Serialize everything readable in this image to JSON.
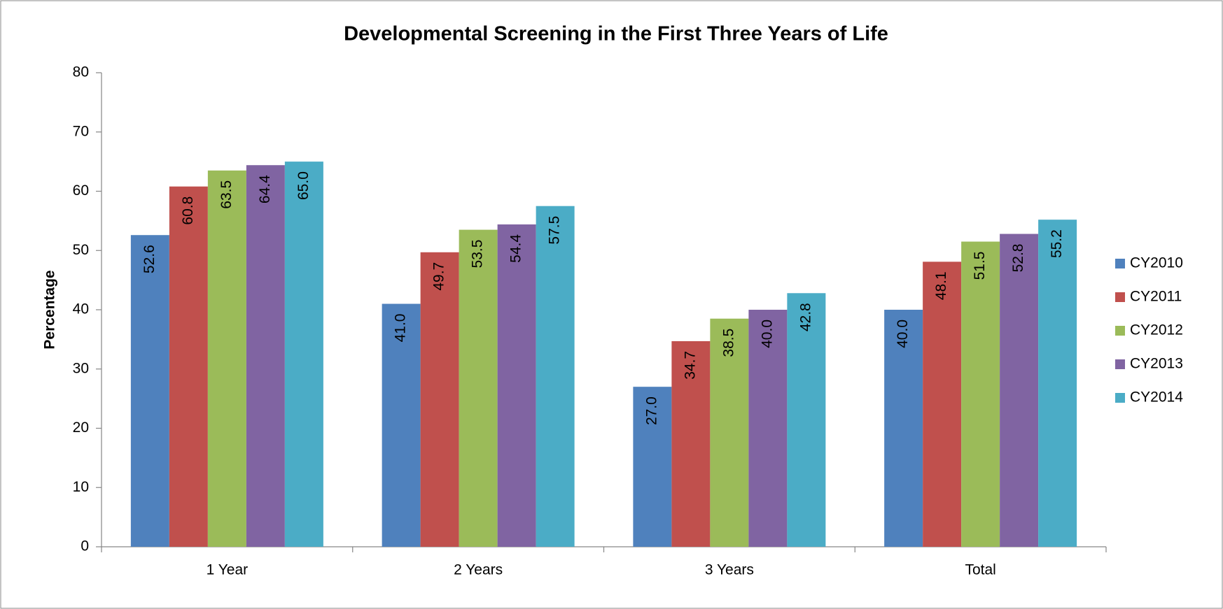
{
  "chart_data": {
    "type": "bar",
    "title": "Developmental Screening in the First Three Years of Life",
    "y_label": "Percentage",
    "categories": [
      "1 Year",
      "2 Years",
      "3 Years",
      "Total"
    ],
    "series": [
      {
        "name": "CY2010",
        "color": "#4f81bd",
        "values": [
          52.6,
          41.0,
          27.0,
          40.0
        ],
        "value_labels": [
          "52.6",
          "41.0",
          "27.0",
          "40.0"
        ]
      },
      {
        "name": "CY2011",
        "color": "#c0504d",
        "values": [
          60.8,
          49.7,
          34.7,
          48.1
        ],
        "value_labels": [
          "60.8",
          "49.7",
          "34.7",
          "48.1"
        ]
      },
      {
        "name": "CY2012",
        "color": "#9bbb59",
        "values": [
          63.5,
          53.5,
          38.5,
          51.5
        ],
        "value_labels": [
          "63.5",
          "53.5",
          "38.5",
          "51.5"
        ]
      },
      {
        "name": "CY2013",
        "color": "#8064a2",
        "values": [
          64.4,
          54.4,
          40.0,
          52.8
        ],
        "value_labels": [
          "64.4",
          "54.4",
          "40.0",
          "52.8"
        ]
      },
      {
        "name": "CY2014",
        "color": "#4bacc6",
        "values": [
          65.0,
          57.5,
          42.8,
          55.2
        ],
        "value_labels": [
          "65.0",
          "57.5",
          "42.8",
          "55.2"
        ]
      }
    ],
    "ylim": [
      0,
      80
    ],
    "yticks": [
      0,
      10,
      20,
      30,
      40,
      50,
      60,
      70,
      80
    ],
    "legend": "right",
    "grid": false
  }
}
